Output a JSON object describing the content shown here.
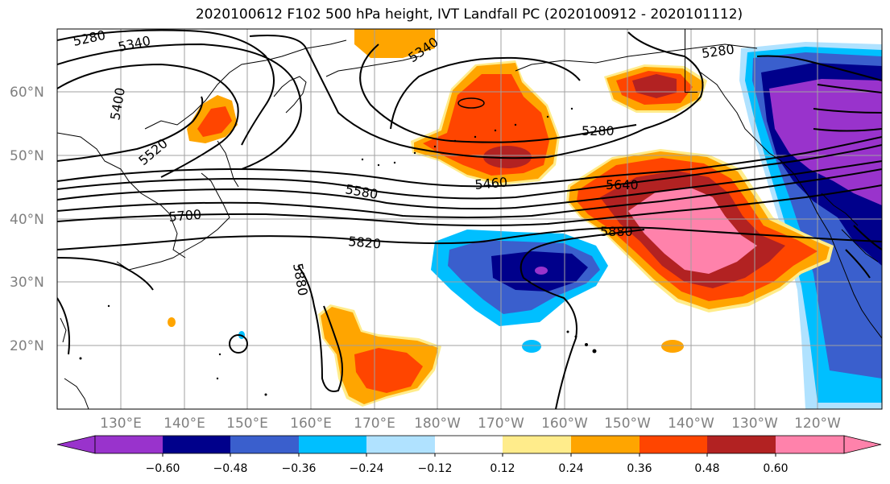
{
  "title": "2020100612 F102 500 hPa height, IVT Landfall PC (2020100912 - 2020101112)",
  "lat_labels": [
    "60°N",
    "50°N",
    "40°N",
    "30°N",
    "20°N"
  ],
  "lon_labels": [
    "130°E",
    "140°E",
    "150°E",
    "160°E",
    "170°E",
    "180°W",
    "170°W",
    "160°W",
    "150°W",
    "140°W",
    "130°W",
    "120°W"
  ],
  "contour_labels": [
    "5280",
    "5340",
    "5400",
    "5520",
    "5340",
    "5280",
    "5280",
    "5460",
    "5580",
    "5640",
    "5700",
    "5820",
    "5880",
    "5880"
  ],
  "colorbar": {
    "ticks": [
      "−0.60",
      "−0.48",
      "−0.36",
      "−0.24",
      "−0.12",
      "0.12",
      "0.24",
      "0.36",
      "0.48",
      "0.60"
    ],
    "colors": [
      "#9933cc",
      "#00008b",
      "#3a5fcd",
      "#00bfff",
      "#b0e2ff",
      "#ffffff",
      "#ffec8b",
      "#ffa500",
      "#ff4500",
      "#b22222",
      "#ff82ab",
      "#ff82ab"
    ]
  },
  "colors": {
    "purple": "#9933cc",
    "navy": "#00008b",
    "royal": "#3a5fcd",
    "sky": "#00bfff",
    "pale": "#b0e2ff",
    "yellow": "#ffec8b",
    "orange": "#ffa500",
    "redorange": "#ff4500",
    "darkred": "#b22222",
    "pink": "#ff82ab"
  }
}
